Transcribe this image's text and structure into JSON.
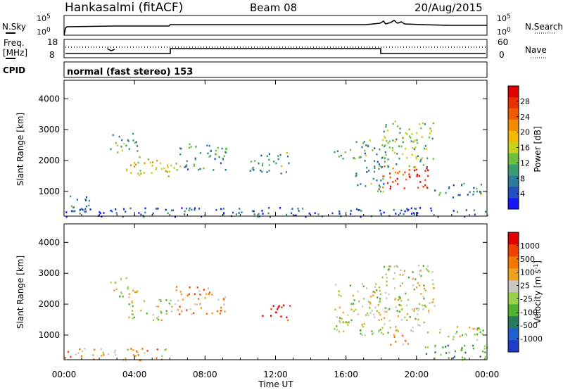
{
  "header": {
    "station": "Hankasalmi (fitACF)",
    "beam": "Beam 08",
    "date": "20/Aug/2015"
  },
  "left_labels": {
    "nsky": "N.Sky",
    "freq_line1": "Freq.",
    "freq_line2": "[MHz]",
    "cpid": "CPID"
  },
  "right_labels": {
    "nsearch": "N.Search",
    "nave": "Nave"
  },
  "top_ticks": {
    "noise_hi": "10^5",
    "noise_lo": "10^0",
    "freq_hi": "18",
    "freq_lo": "8",
    "nave_hi": "60",
    "nave_lo": "0"
  },
  "cpid_text": "normal (fast stereo) 153",
  "xaxis": {
    "label": "Time UT",
    "ticks": [
      "00:00",
      "04:00",
      "08:00",
      "12:00",
      "16:00",
      "20:00",
      "00:00"
    ]
  },
  "chart_data": [
    {
      "type": "heatmap",
      "panel": "power",
      "title": "",
      "xlabel": "Time UT",
      "ylabel": "Slant Range [km]",
      "xlim": [
        0,
        24
      ],
      "ylim": [
        200,
        4600
      ],
      "yticks": [
        "1000",
        "2000",
        "3000",
        "4000"
      ],
      "colorbar_label": "Power [dB]",
      "colorbar_ticks": [
        "4",
        "8",
        "12",
        "16",
        "20",
        "24",
        "28"
      ],
      "colors": [
        "#1515ff",
        "#2050c0",
        "#2e7a9a",
        "#3a9a70",
        "#6fbf3e",
        "#c8d11e",
        "#f5b800",
        "#f58a00",
        "#f05a00",
        "#e83000",
        "#e00000"
      ],
      "regions": [
        {
          "t0": 0.1,
          "t1": 1.4,
          "r0": 250,
          "r1": 950,
          "level": 0.25
        },
        {
          "t0": 2.6,
          "t1": 4.2,
          "r0": 2200,
          "r1": 2900,
          "level": 0.35
        },
        {
          "t0": 3.5,
          "t1": 5.6,
          "r0": 1550,
          "r1": 2150,
          "level": 0.5
        },
        {
          "t0": 5.2,
          "t1": 6.1,
          "r0": 1500,
          "r1": 2100,
          "level": 0.55
        },
        {
          "t0": 6.2,
          "t1": 9.2,
          "r0": 1700,
          "r1": 2600,
          "level": 0.3
        },
        {
          "t0": 10.5,
          "t1": 12.8,
          "r0": 1600,
          "r1": 2300,
          "level": 0.3
        },
        {
          "t0": 15.3,
          "t1": 16.6,
          "r0": 2000,
          "r1": 2400,
          "level": 0.35
        },
        {
          "t0": 16.5,
          "t1": 18.2,
          "r0": 1000,
          "r1": 2700,
          "level": 0.3
        },
        {
          "t0": 17.8,
          "t1": 20.8,
          "r0": 1100,
          "r1": 1900,
          "level": 0.85
        },
        {
          "t0": 18.0,
          "t1": 21.0,
          "r0": 1800,
          "r1": 3300,
          "level": 0.4
        },
        {
          "t0": 21.0,
          "t1": 23.8,
          "r0": 800,
          "r1": 1300,
          "level": 0.3
        },
        {
          "t0": 0.0,
          "t1": 24.0,
          "r0": 200,
          "r1": 500,
          "level": 0.15
        }
      ]
    },
    {
      "type": "heatmap",
      "panel": "velocity",
      "title": "",
      "xlabel": "Time UT",
      "ylabel": "Slant Range [km]",
      "xlim": [
        0,
        24
      ],
      "ylim": [
        200,
        4600
      ],
      "yticks": [
        "1000",
        "2000",
        "3000",
        "4000"
      ],
      "colorbar_label": "Velocity [m s^-1]",
      "colorbar_ticks": [
        "1000",
        "500",
        "100",
        "25",
        "-25",
        "-100",
        "-500",
        "-1000"
      ],
      "colors": [
        "#1e3cc8",
        "#2060d0",
        "#2a7a60",
        "#50b030",
        "#9ad04a",
        "#c8c8c0",
        "#f0a020",
        "#f07800",
        "#f04000",
        "#e00000"
      ],
      "regions": [
        {
          "t0": 2.6,
          "t1": 4.2,
          "r0": 2200,
          "r1": 2900,
          "level": 0.5
        },
        {
          "t0": 3.5,
          "t1": 6.1,
          "r0": 1500,
          "r1": 2200,
          "level": 0.5
        },
        {
          "t0": 6.2,
          "t1": 9.2,
          "r0": 1700,
          "r1": 2600,
          "level": 0.7
        },
        {
          "t0": 11.2,
          "t1": 12.9,
          "r0": 1500,
          "r1": 2000,
          "level": 0.92
        },
        {
          "t0": 15.3,
          "t1": 18.2,
          "r0": 1000,
          "r1": 2700,
          "level": 0.5
        },
        {
          "t0": 17.8,
          "t1": 20.8,
          "r0": 1100,
          "r1": 1900,
          "level": 0.5
        },
        {
          "t0": 18.0,
          "t1": 19.5,
          "r0": 700,
          "r1": 1100,
          "level": 0.75
        },
        {
          "t0": 18.0,
          "t1": 21.0,
          "r0": 1800,
          "r1": 3300,
          "level": 0.5
        },
        {
          "t0": 21.0,
          "t1": 23.8,
          "r0": 800,
          "r1": 1300,
          "level": 0.5
        },
        {
          "t0": 0.0,
          "t1": 6.0,
          "r0": 200,
          "r1": 600,
          "level": 0.65
        },
        {
          "t0": 20.0,
          "t1": 24.0,
          "r0": 200,
          "r1": 700,
          "level": 0.35
        }
      ]
    }
  ]
}
